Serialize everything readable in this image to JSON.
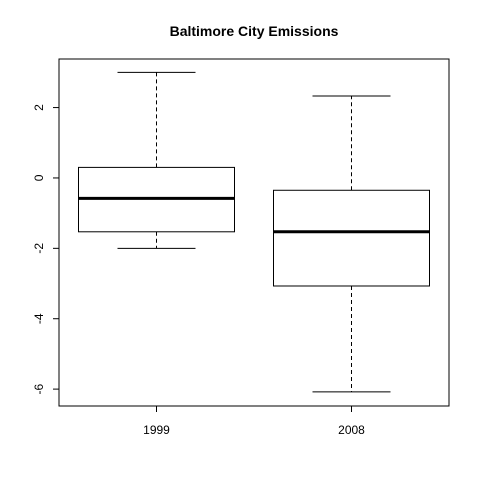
{
  "chart_data": {
    "type": "boxplot",
    "title": "Baltimore City Emissions",
    "xlabel": "",
    "ylabel": "",
    "categories": [
      "1999",
      "2008"
    ],
    "boxes": [
      {
        "category": "1999",
        "min": -2.0,
        "q1": -1.53,
        "median": -0.58,
        "q3": 0.3,
        "max": 3.0
      },
      {
        "category": "2008",
        "min": -6.08,
        "q1": -3.07,
        "median": -1.53,
        "q3": -0.35,
        "max": 2.33
      }
    ],
    "yticks": [
      -6,
      -4,
      -2,
      0,
      2
    ],
    "ytick_labels": [
      "-6",
      "-4",
      "-2",
      "0",
      "2"
    ],
    "ylim": [
      -6.48,
      3.38
    ],
    "grid": false,
    "colors": {
      "line": "#000000",
      "box_fill": "#ffffff",
      "background": "#ffffff"
    }
  }
}
